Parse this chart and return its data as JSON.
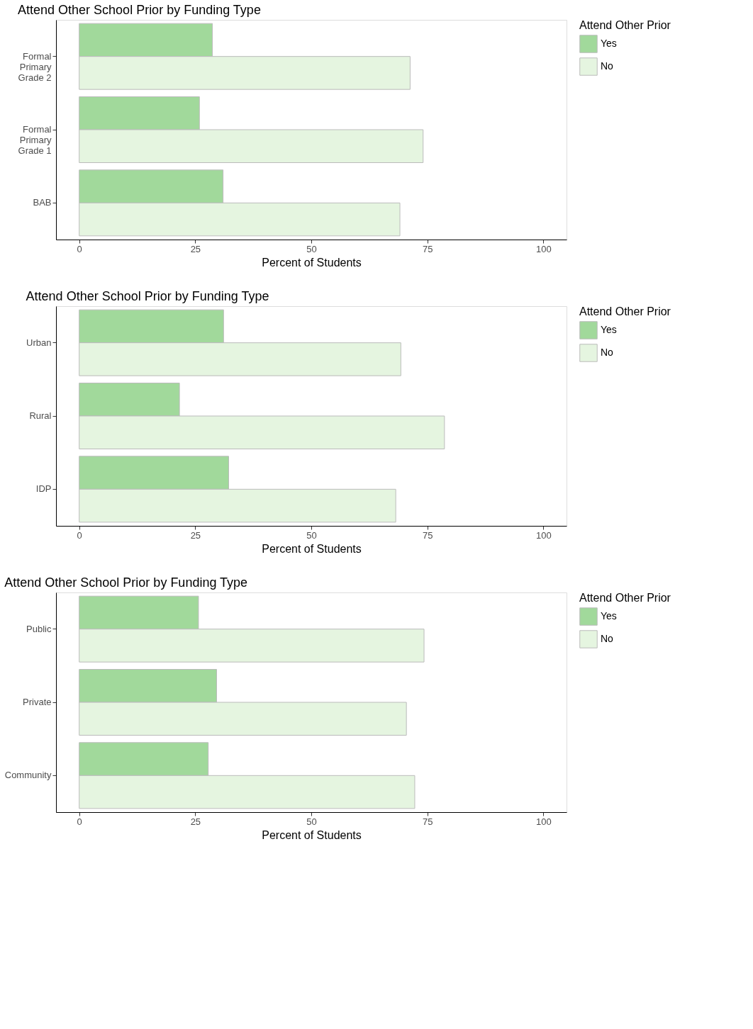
{
  "chart_data": [
    {
      "type": "bar",
      "orientation": "horizontal",
      "title": "Attend Other School Prior by Funding Type",
      "xlabel": "Percent of Students",
      "legend_title": "Attend Other Prior",
      "legend": "right",
      "grid": false,
      "categories": [
        "Formal Primary Grade 2",
        "Formal Primary Grade 1",
        "BAB"
      ],
      "xlim": [
        -5,
        105
      ],
      "xticks": [
        0,
        25,
        50,
        75,
        100
      ],
      "series": [
        {
          "name": "Yes",
          "color": "#a1d99b",
          "values": [
            28.7,
            25.9,
            31.0
          ]
        },
        {
          "name": "No",
          "color": "#e5f5e0",
          "values": [
            71.3,
            74.1,
            69.1
          ]
        }
      ]
    },
    {
      "type": "bar",
      "orientation": "horizontal",
      "title": "Attend Other School Prior by Funding Type",
      "xlabel": "Percent of Students",
      "legend_title": "Attend Other Prior",
      "legend": "right",
      "grid": false,
      "categories": [
        "Urban",
        "Rural",
        "IDP"
      ],
      "xlim": [
        -5,
        105
      ],
      "xticks": [
        0,
        25,
        50,
        75,
        100
      ],
      "series": [
        {
          "name": "Yes",
          "color": "#a1d99b",
          "values": [
            31.1,
            21.6,
            32.2
          ]
        },
        {
          "name": "No",
          "color": "#e5f5e0",
          "values": [
            69.3,
            78.7,
            68.2
          ]
        }
      ]
    },
    {
      "type": "bar",
      "orientation": "horizontal",
      "title": "Attend Other School Prior by Funding Type",
      "xlabel": "Percent of Students",
      "legend_title": "Attend Other Prior",
      "legend": "right",
      "grid": false,
      "categories": [
        "Public",
        "Private",
        "Community"
      ],
      "xlim": [
        -5,
        105
      ],
      "xticks": [
        0,
        25,
        50,
        75,
        100
      ],
      "series": [
        {
          "name": "Yes",
          "color": "#a1d99b",
          "values": [
            25.7,
            29.6,
            27.8
          ]
        },
        {
          "name": "No",
          "color": "#e5f5e0",
          "values": [
            74.3,
            70.5,
            72.3
          ]
        }
      ]
    }
  ]
}
